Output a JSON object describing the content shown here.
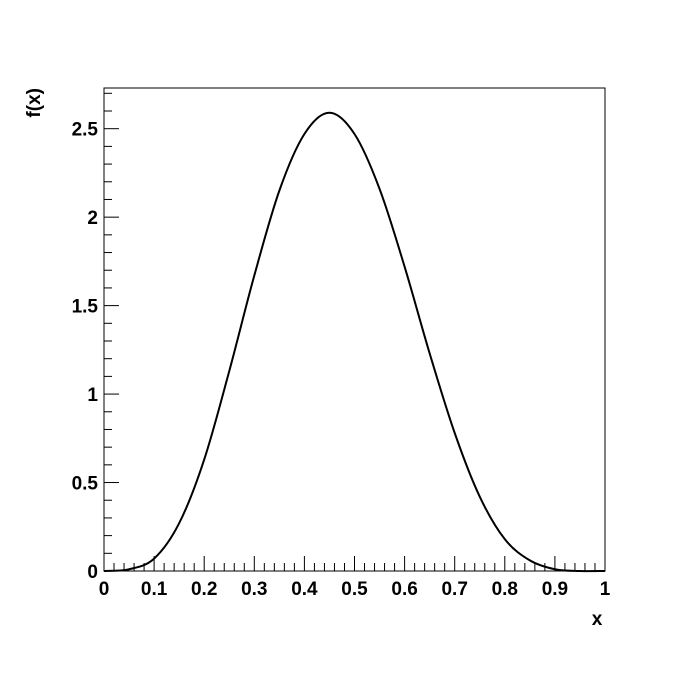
{
  "chart_data": {
    "type": "line",
    "x_label": "x",
    "y_label": "f(x)",
    "x": [
      0,
      0.05,
      0.1,
      0.15,
      0.2,
      0.25,
      0.3,
      0.35,
      0.4,
      0.45,
      0.5,
      0.55,
      0.6,
      0.65,
      0.7,
      0.75,
      0.8,
      0.85,
      0.9,
      0.95,
      1
    ],
    "series": [
      {
        "color": "#000000",
        "values": [
          0,
          0.01,
          0.07,
          0.27,
          0.63,
          1.13,
          1.67,
          2.15,
          2.47,
          2.59,
          2.47,
          2.16,
          1.72,
          1.23,
          0.78,
          0.42,
          0.18,
          0.06,
          0.01,
          0,
          0
        ]
      }
    ],
    "xlim": [
      0,
      1
    ],
    "ylim": [
      0,
      2.73
    ],
    "xticks": [
      0,
      0.1,
      0.2,
      0.3,
      0.4,
      0.5,
      0.6,
      0.7,
      0.8,
      0.9,
      1
    ],
    "yticks": [
      0,
      0.5,
      1,
      1.5,
      2,
      2.5
    ]
  }
}
